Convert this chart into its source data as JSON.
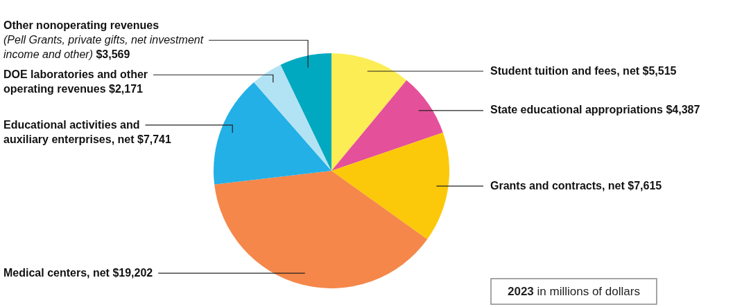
{
  "chart_data": {
    "type": "pie",
    "categories": [
      "Student tuition and fees, net",
      "State educational appropriations",
      "Grants and contracts, net",
      "Medical centers, net",
      "Educational activities and auxiliary enterprises, net",
      "DOE laboratories and other operating revenues",
      "Other nonoperating revenues (Pell Grants, private gifts, net investment income and other)"
    ],
    "values": [
      5515,
      4387,
      7615,
      19202,
      7741,
      2171,
      3569
    ],
    "value_labels": [
      "$5,515",
      "$4,387",
      "$7,615",
      "$19,202",
      "$7,741",
      "$2,171",
      "$3,569"
    ],
    "colors": [
      "#fced55",
      "#e5509a",
      "#fcc90a",
      "#f5874a",
      "#22b0e6",
      "#b2e3f4",
      "#00a9bf"
    ],
    "annotations": [
      "2023 in millions of dollars"
    ]
  }
}
